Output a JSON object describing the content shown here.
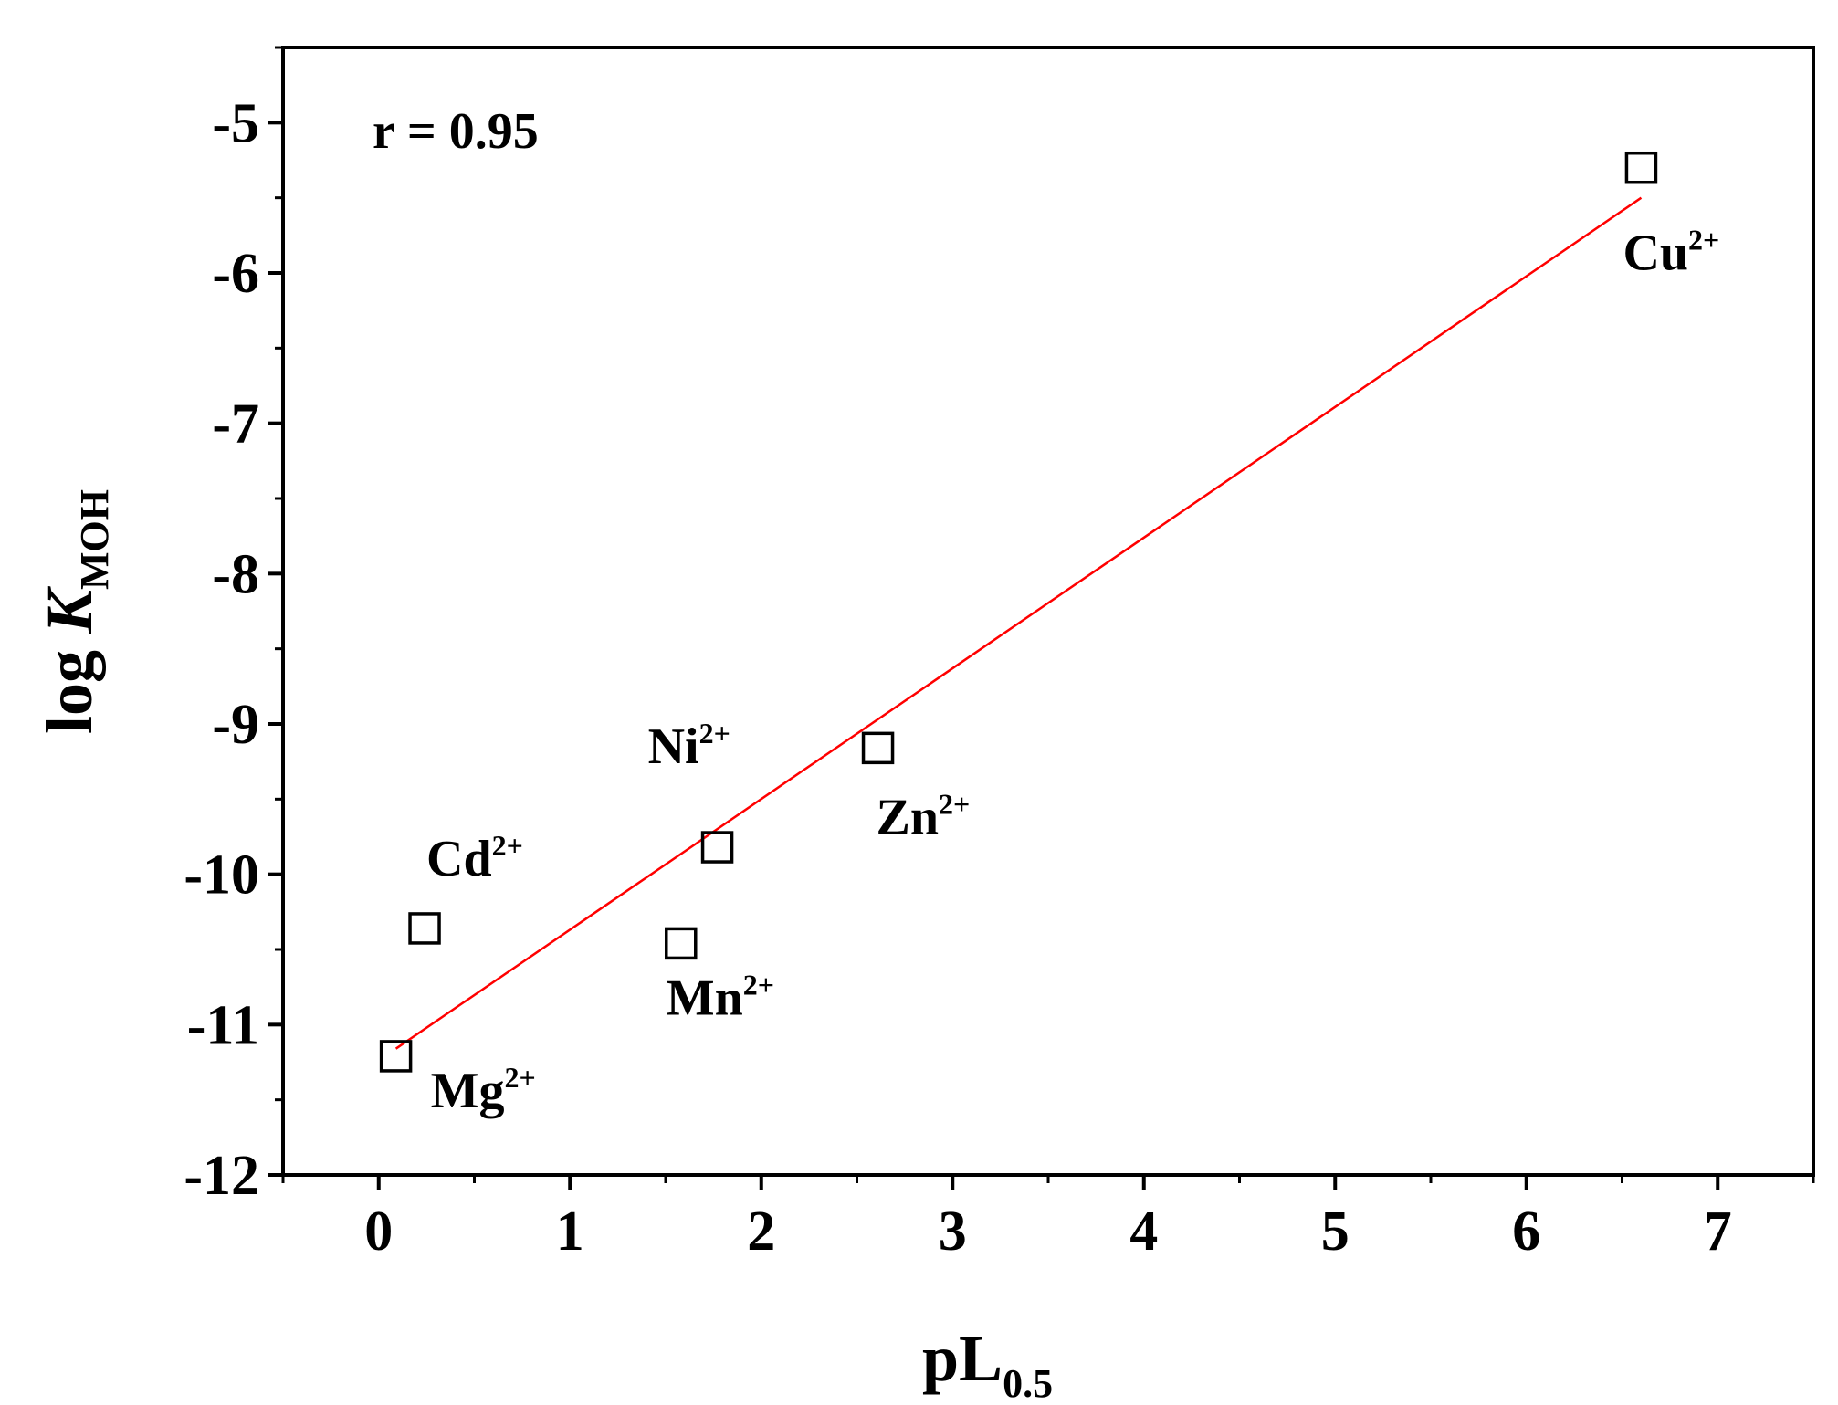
{
  "chart_data": {
    "type": "scatter",
    "xlabel": {
      "main": "pL",
      "sub": "0.5"
    },
    "ylabel": {
      "main": "log ",
      "italic": "K",
      "sub": "MOH"
    },
    "xlim": [
      -0.5,
      7.5
    ],
    "ylim": [
      -12,
      -4.5
    ],
    "xticks": [
      "0",
      "1",
      "2",
      "3",
      "4",
      "5",
      "6",
      "7"
    ],
    "yticks": [
      "-5",
      "-6",
      "-7",
      "-8",
      "-9",
      "-10",
      "-11",
      "-12"
    ],
    "grid": false,
    "annotation": "r = 0.95",
    "points": [
      {
        "x": 0.09,
        "y": -11.21,
        "ion": "Mg",
        "charge": "2+"
      },
      {
        "x": 0.24,
        "y": -10.36,
        "ion": "Cd",
        "charge": "2+"
      },
      {
        "x": 1.58,
        "y": -10.46,
        "ion": "Mn",
        "charge": "2+"
      },
      {
        "x": 1.77,
        "y": -9.82,
        "ion": "Ni",
        "charge": "2+"
      },
      {
        "x": 2.61,
        "y": -9.16,
        "ion": "Zn",
        "charge": "2+"
      },
      {
        "x": 6.6,
        "y": -5.3,
        "ion": "Cu",
        "charge": "2+"
      }
    ],
    "fit_line": {
      "x": [
        0.09,
        6.6
      ],
      "y": [
        -11.16,
        -5.5
      ],
      "color": "#ff0000"
    },
    "marker_color": "#000000"
  }
}
